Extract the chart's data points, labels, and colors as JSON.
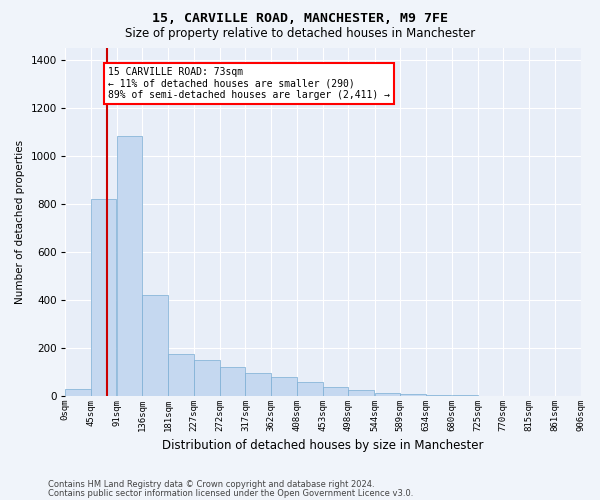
{
  "title": "15, CARVILLE ROAD, MANCHESTER, M9 7FE",
  "subtitle": "Size of property relative to detached houses in Manchester",
  "xlabel": "Distribution of detached houses by size in Manchester",
  "ylabel": "Number of detached properties",
  "footer_line1": "Contains HM Land Registry data © Crown copyright and database right 2024.",
  "footer_line2": "Contains public sector information licensed under the Open Government Licence v3.0.",
  "bar_color": "#c5d8f0",
  "bar_edge_color": "#7aadd4",
  "background_color": "#e8eef8",
  "grid_color": "#ffffff",
  "red_line_color": "#cc0000",
  "annotation_text_line1": "15 CARVILLE ROAD: 73sqm",
  "annotation_text_line2": "← 11% of detached houses are smaller (290)",
  "annotation_text_line3": "89% of semi-detached houses are larger (2,411) →",
  "property_size_sqm": 73,
  "bin_edges": [
    0,
    45,
    91,
    136,
    181,
    227,
    272,
    317,
    362,
    408,
    453,
    498,
    544,
    589,
    634,
    680,
    725,
    770,
    815,
    861,
    906
  ],
  "bin_labels": [
    "0sqm",
    "45sqm",
    "91sqm",
    "136sqm",
    "181sqm",
    "227sqm",
    "272sqm",
    "317sqm",
    "362sqm",
    "408sqm",
    "453sqm",
    "498sqm",
    "544sqm",
    "589sqm",
    "634sqm",
    "680sqm",
    "725sqm",
    "770sqm",
    "815sqm",
    "861sqm",
    "906sqm"
  ],
  "bar_heights": [
    28,
    820,
    1080,
    420,
    175,
    150,
    120,
    95,
    80,
    60,
    40,
    25,
    15,
    8,
    5,
    3,
    2,
    1,
    0,
    0
  ],
  "ylim": [
    0,
    1450
  ],
  "yticks": [
    0,
    200,
    400,
    600,
    800,
    1000,
    1200,
    1400
  ],
  "bin_width": 45,
  "fig_width": 6.0,
  "fig_height": 5.0,
  "dpi": 100
}
